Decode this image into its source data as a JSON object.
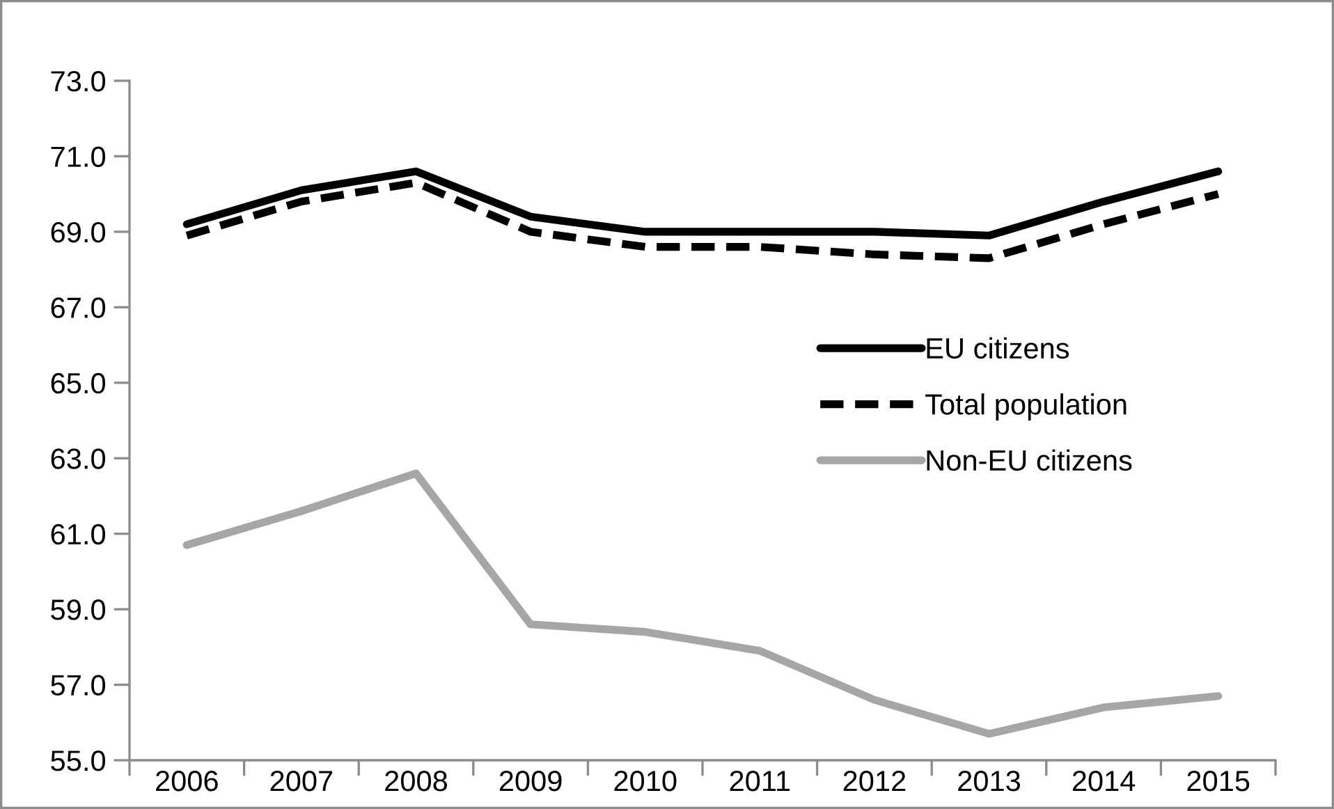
{
  "chart_data": {
    "type": "line",
    "categories": [
      "2006",
      "2007",
      "2008",
      "2009",
      "2010",
      "2011",
      "2012",
      "2013",
      "2014",
      "2015"
    ],
    "series": [
      {
        "name": "EU citizens",
        "color": "#000000",
        "line_style": "solid",
        "values": [
          69.2,
          70.1,
          70.6,
          69.4,
          69.0,
          69.0,
          69.0,
          68.9,
          69.8,
          70.6
        ]
      },
      {
        "name": "Total population",
        "color": "#000000",
        "line_style": "dashed",
        "values": [
          68.9,
          69.8,
          70.3,
          69.0,
          68.6,
          68.6,
          68.4,
          68.3,
          69.2,
          70.0
        ]
      },
      {
        "name": "Non-EU citizens",
        "color": "#a6a6a6",
        "line_style": "solid",
        "values": [
          60.7,
          61.6,
          62.6,
          58.6,
          58.4,
          57.9,
          56.6,
          55.7,
          56.4,
          56.7
        ]
      }
    ],
    "ylim": [
      55,
      73
    ],
    "yticks": [
      {
        "value": 55,
        "label": "55.0"
      },
      {
        "value": 57,
        "label": "57.0"
      },
      {
        "value": 59,
        "label": "59.0"
      },
      {
        "value": 61,
        "label": "61.0"
      },
      {
        "value": 63,
        "label": "63.0"
      },
      {
        "value": 65,
        "label": "65.0"
      },
      {
        "value": 67,
        "label": "67.0"
      },
      {
        "value": 69,
        "label": "69.0"
      },
      {
        "value": 71,
        "label": "71.0"
      },
      {
        "value": 73,
        "label": "73.0"
      }
    ],
    "grid": false,
    "legend": "right",
    "marker": "none"
  }
}
